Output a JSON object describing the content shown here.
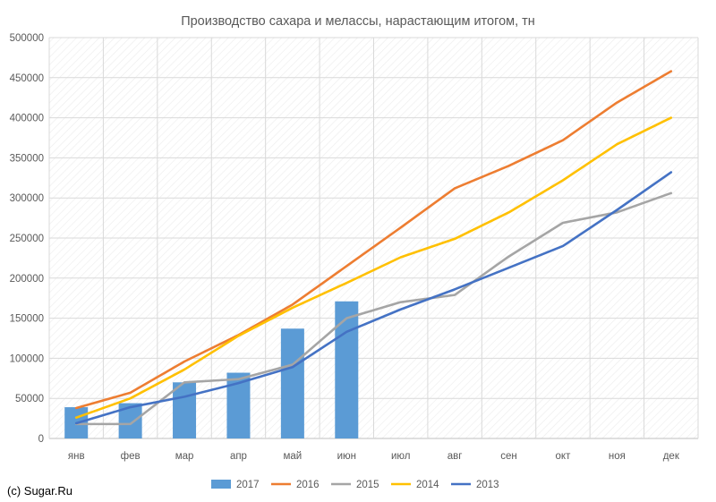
{
  "chart_data": {
    "type": "bar+line",
    "title": "Производство сахара и мелассы, нарастающим итогом, тн",
    "categories": [
      "янв",
      "фев",
      "мар",
      "апр",
      "май",
      "июн",
      "июл",
      "авг",
      "сен",
      "окт",
      "ноя",
      "дек"
    ],
    "ylim": [
      0,
      500000
    ],
    "yticks": [
      "0",
      "50000",
      "100000",
      "150000",
      "200000",
      "250000",
      "300000",
      "350000",
      "400000",
      "450000",
      "500000"
    ],
    "ytick_values": [
      0,
      50000,
      100000,
      150000,
      200000,
      250000,
      300000,
      350000,
      400000,
      450000,
      500000
    ],
    "grid": true,
    "legend_position": "bottom",
    "series": [
      {
        "name": "2017",
        "type": "bar",
        "color": "#5b9bd5",
        "values": [
          39000,
          44000,
          70000,
          82000,
          137000,
          171000,
          null,
          null,
          null,
          null,
          null,
          null
        ]
      },
      {
        "name": "2016",
        "type": "line",
        "color": "#ed7d31",
        "values": [
          38000,
          57000,
          96000,
          129000,
          167000,
          215000,
          263000,
          312000,
          340000,
          372000,
          419000,
          458000
        ]
      },
      {
        "name": "2015",
        "type": "line",
        "color": "#a5a5a5",
        "values": [
          18000,
          18000,
          70000,
          74000,
          92000,
          150000,
          170000,
          179000,
          227000,
          269000,
          282000,
          306000
        ]
      },
      {
        "name": "2014",
        "type": "line",
        "color": "#ffc000",
        "values": [
          26000,
          50000,
          86000,
          128000,
          163000,
          194000,
          226000,
          249000,
          282000,
          322000,
          367000,
          400000
        ]
      },
      {
        "name": "2013",
        "type": "line",
        "color": "#4472c4",
        "values": [
          19000,
          39000,
          52000,
          69000,
          89000,
          133000,
          161000,
          186000,
          213000,
          240000,
          285000,
          332000
        ]
      }
    ]
  },
  "credit": "(c) Sugar.Ru"
}
